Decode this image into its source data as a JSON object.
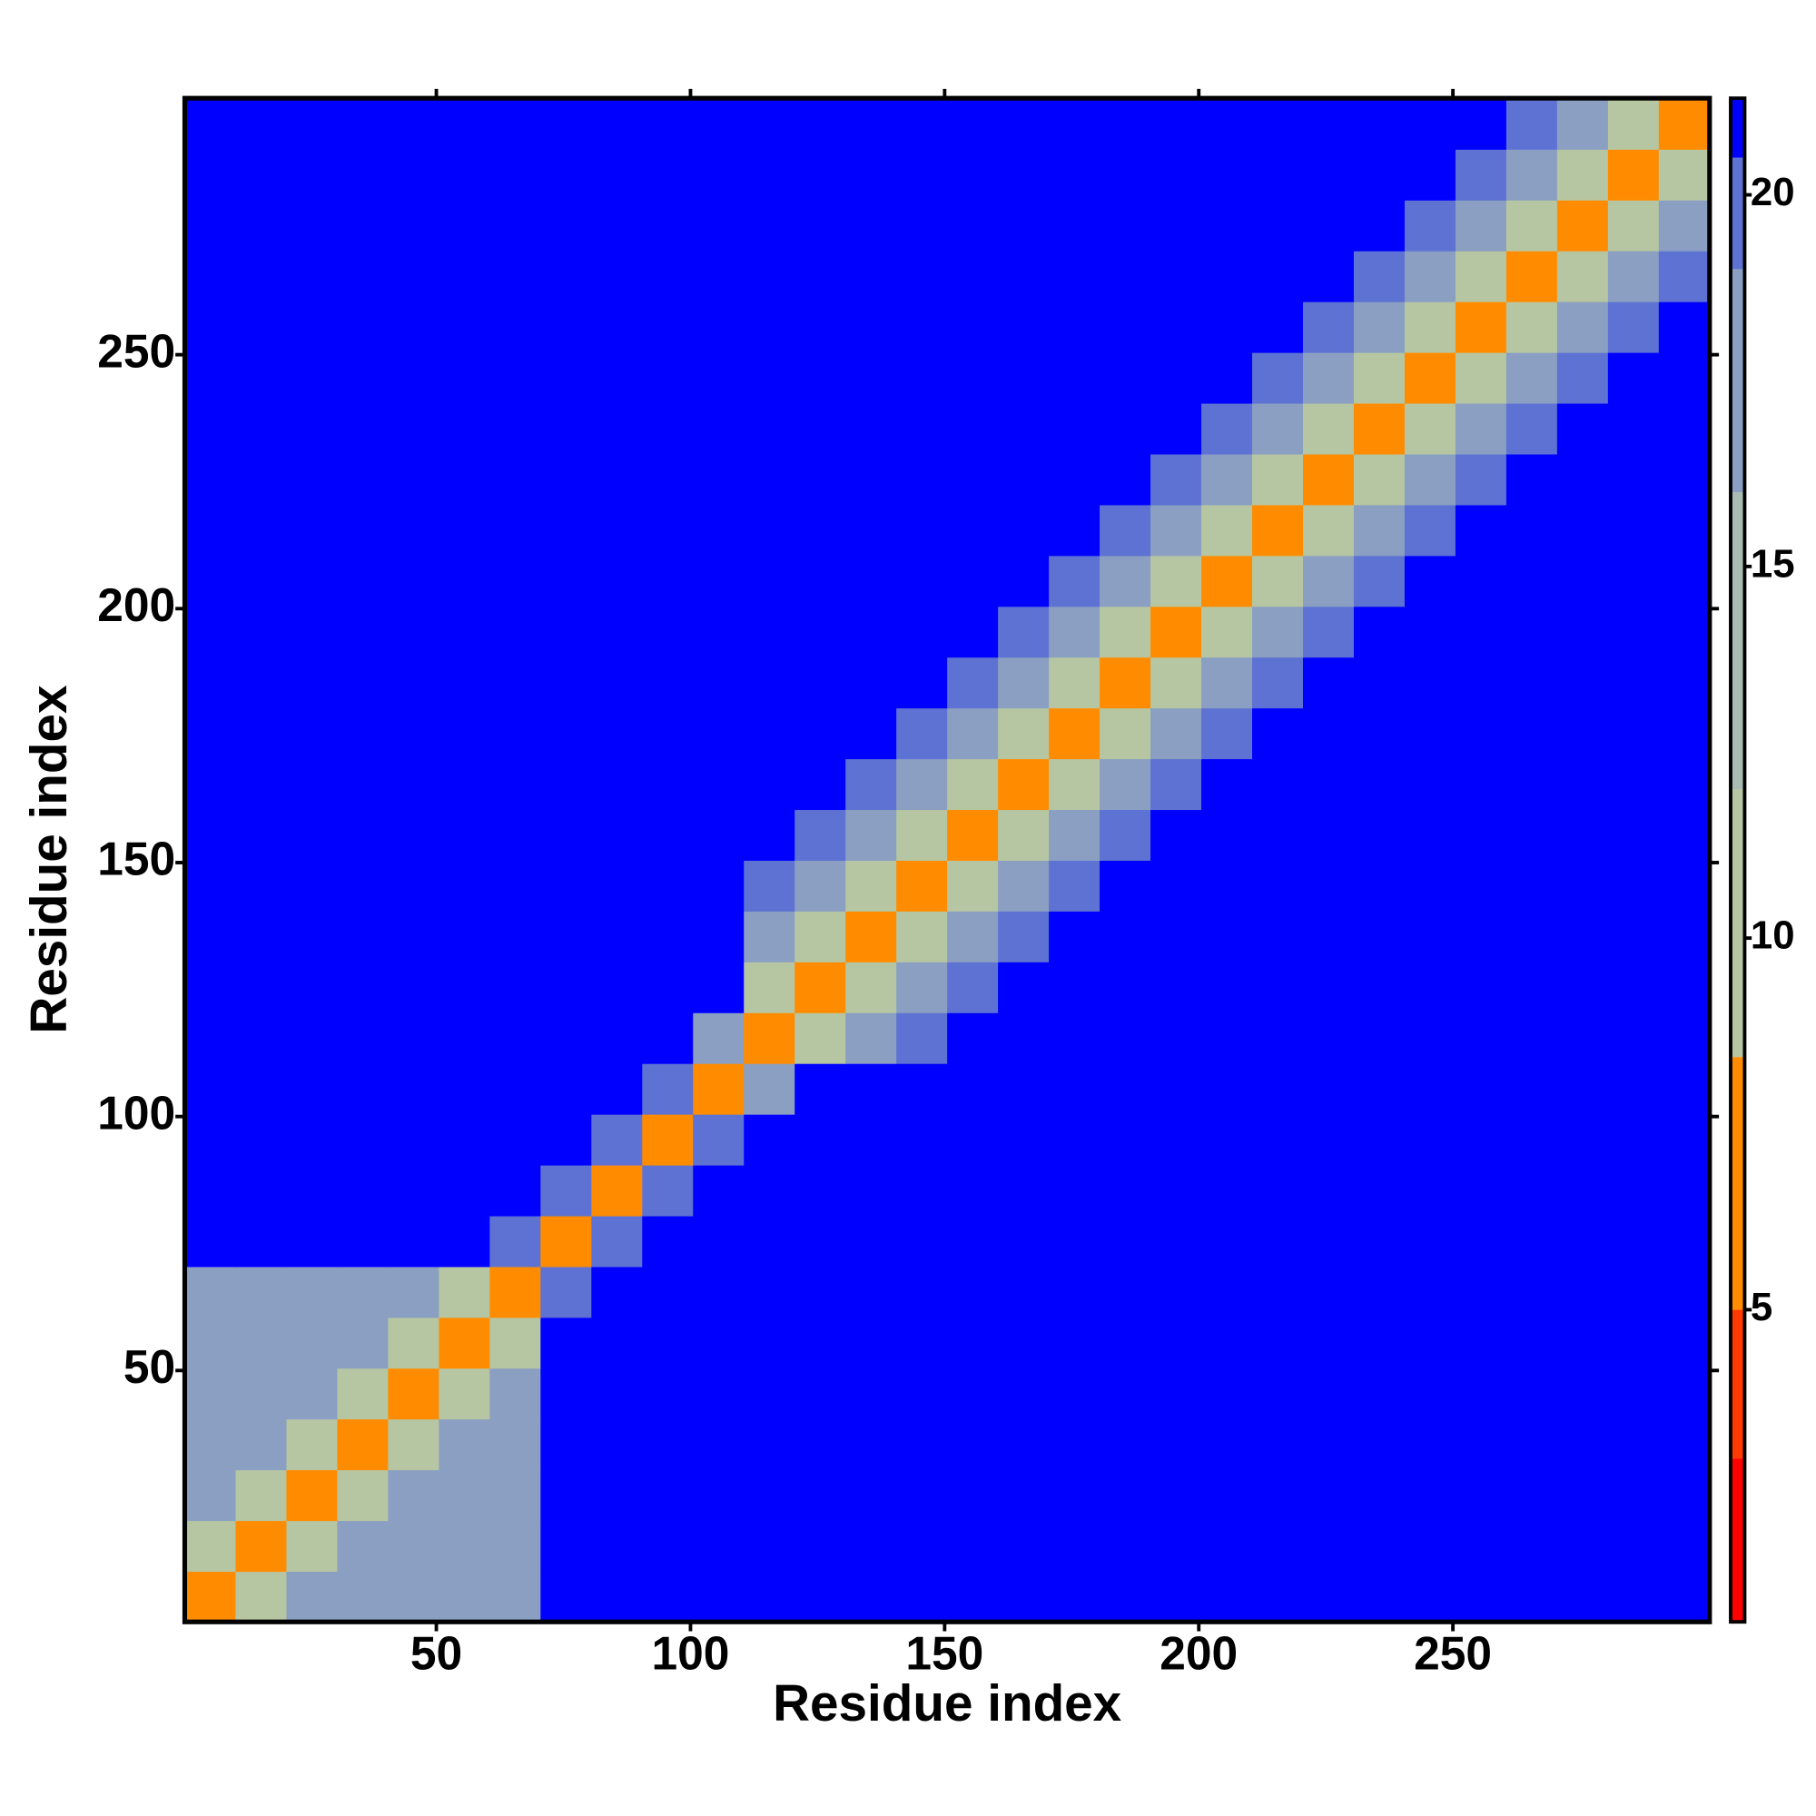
{
  "chart_data": {
    "type": "heatmap",
    "xlabel": "Residue index",
    "ylabel": "Residue index",
    "xlim": [
      0.5,
      300.5
    ],
    "ylim": [
      0.5,
      300.5
    ],
    "xticks": [
      50,
      100,
      150,
      200,
      250
    ],
    "yticks": [
      50,
      100,
      150,
      200,
      250
    ],
    "zlim": [
      0.8,
      21.3
    ],
    "zticks": [
      5,
      10,
      15,
      20
    ],
    "colorscale": [
      [
        0.8,
        "#ff0000"
      ],
      [
        3,
        "#ff3a00"
      ],
      [
        5,
        "#ff8c00"
      ],
      [
        8.4,
        "#b6c6a2"
      ],
      [
        12,
        "#a9bbb3"
      ],
      [
        16,
        "#8a9fc2"
      ],
      [
        19,
        "#5d72d2"
      ],
      [
        20.5,
        "#0000ff"
      ]
    ],
    "x": [
      5.5,
      15.5,
      25.5,
      35.5,
      45.5,
      55.5,
      65.5,
      75.5,
      85.5,
      95.5,
      105.5,
      115.5,
      125.5,
      135.5,
      145.5,
      155.5,
      165.5,
      175.5,
      185.5,
      195.5,
      205.5,
      215.5,
      225.5,
      235.5,
      245.5,
      255.5,
      265.5,
      275.5,
      285.5,
      295.5
    ],
    "y": [
      5.5,
      15.5,
      25.5,
      35.5,
      45.5,
      55.5,
      65.5,
      75.5,
      85.5,
      95.5,
      105.5,
      115.5,
      125.5,
      135.5,
      145.5,
      155.5,
      165.5,
      175.5,
      185.5,
      195.5,
      205.5,
      215.5,
      225.5,
      235.5,
      245.5,
      255.5,
      265.5,
      275.5,
      285.5,
      295.5
    ],
    "z": [
      [
        6,
        11,
        17,
        17,
        17,
        17,
        17,
        21,
        21,
        21,
        21,
        21,
        21,
        21,
        21,
        21,
        21,
        21,
        21,
        21,
        21,
        21,
        21,
        21,
        21,
        21,
        21,
        21,
        21,
        21
      ],
      [
        11,
        6,
        11,
        17,
        17,
        17,
        17,
        21,
        21,
        21,
        21,
        21,
        21,
        21,
        21,
        21,
        21,
        21,
        21,
        21,
        21,
        21,
        21,
        21,
        21,
        21,
        21,
        21,
        21,
        21
      ],
      [
        17,
        11,
        6,
        11,
        17,
        17,
        17,
        21,
        21,
        21,
        21,
        21,
        21,
        21,
        21,
        21,
        21,
        21,
        21,
        21,
        21,
        21,
        21,
        21,
        21,
        21,
        21,
        21,
        21,
        21
      ],
      [
        17,
        17,
        11,
        6,
        11,
        17,
        17,
        21,
        21,
        21,
        21,
        21,
        21,
        21,
        21,
        21,
        21,
        21,
        21,
        21,
        21,
        21,
        21,
        21,
        21,
        21,
        21,
        21,
        21,
        21
      ],
      [
        17,
        17,
        17,
        11,
        6,
        11,
        17,
        21,
        21,
        21,
        21,
        21,
        21,
        21,
        21,
        21,
        21,
        21,
        21,
        21,
        21,
        21,
        21,
        21,
        21,
        21,
        21,
        21,
        21,
        21
      ],
      [
        17,
        17,
        17,
        17,
        11,
        6,
        11,
        21,
        21,
        21,
        21,
        21,
        21,
        21,
        21,
        21,
        21,
        21,
        21,
        21,
        21,
        21,
        21,
        21,
        21,
        21,
        21,
        21,
        21,
        21
      ],
      [
        17,
        17,
        17,
        17,
        17,
        11,
        6,
        19,
        21,
        21,
        21,
        21,
        21,
        21,
        21,
        21,
        21,
        21,
        21,
        21,
        21,
        21,
        21,
        21,
        21,
        21,
        21,
        21,
        21,
        21
      ],
      [
        21,
        21,
        21,
        21,
        21,
        21,
        19,
        6,
        19,
        21,
        21,
        21,
        21,
        21,
        21,
        21,
        21,
        21,
        21,
        21,
        21,
        21,
        21,
        21,
        21,
        21,
        21,
        21,
        21,
        21
      ],
      [
        21,
        21,
        21,
        21,
        21,
        21,
        21,
        19,
        6,
        19,
        21,
        21,
        21,
        21,
        21,
        21,
        21,
        21,
        21,
        21,
        21,
        21,
        21,
        21,
        21,
        21,
        21,
        21,
        21,
        21
      ],
      [
        21,
        21,
        21,
        21,
        21,
        21,
        21,
        21,
        19,
        6,
        19,
        21,
        21,
        21,
        21,
        21,
        21,
        21,
        21,
        21,
        21,
        21,
        21,
        21,
        21,
        21,
        21,
        21,
        21,
        21
      ],
      [
        21,
        21,
        21,
        21,
        21,
        21,
        21,
        21,
        21,
        19,
        6,
        16,
        21,
        21,
        21,
        21,
        21,
        21,
        21,
        21,
        21,
        21,
        21,
        21,
        21,
        21,
        21,
        21,
        21,
        21
      ],
      [
        21,
        21,
        21,
        21,
        21,
        21,
        21,
        21,
        21,
        21,
        16,
        6,
        11,
        16,
        19,
        21,
        21,
        21,
        21,
        21,
        21,
        21,
        21,
        21,
        21,
        21,
        21,
        21,
        21,
        21
      ],
      [
        21,
        21,
        21,
        21,
        21,
        21,
        21,
        21,
        21,
        21,
        21,
        11,
        6,
        11,
        16,
        19,
        21,
        21,
        21,
        21,
        21,
        21,
        21,
        21,
        21,
        21,
        21,
        21,
        21,
        21
      ],
      [
        21,
        21,
        21,
        21,
        21,
        21,
        21,
        21,
        21,
        21,
        21,
        16,
        11,
        6,
        11,
        16,
        19,
        21,
        21,
        21,
        21,
        21,
        21,
        21,
        21,
        21,
        21,
        21,
        21,
        21
      ],
      [
        21,
        21,
        21,
        21,
        21,
        21,
        21,
        21,
        21,
        21,
        21,
        19,
        16,
        11,
        6,
        11,
        16,
        19,
        21,
        21,
        21,
        21,
        21,
        21,
        21,
        21,
        21,
        21,
        21,
        21
      ],
      [
        21,
        21,
        21,
        21,
        21,
        21,
        21,
        21,
        21,
        21,
        21,
        21,
        19,
        16,
        11,
        6,
        11,
        16,
        19,
        21,
        21,
        21,
        21,
        21,
        21,
        21,
        21,
        21,
        21,
        21
      ],
      [
        21,
        21,
        21,
        21,
        21,
        21,
        21,
        21,
        21,
        21,
        21,
        21,
        21,
        19,
        16,
        11,
        6,
        11,
        16,
        19,
        21,
        21,
        21,
        21,
        21,
        21,
        21,
        21,
        21,
        21
      ],
      [
        21,
        21,
        21,
        21,
        21,
        21,
        21,
        21,
        21,
        21,
        21,
        21,
        21,
        21,
        19,
        16,
        11,
        6,
        11,
        16,
        19,
        21,
        21,
        21,
        21,
        21,
        21,
        21,
        21,
        21
      ],
      [
        21,
        21,
        21,
        21,
        21,
        21,
        21,
        21,
        21,
        21,
        21,
        21,
        21,
        21,
        21,
        19,
        16,
        11,
        6,
        11,
        16,
        19,
        21,
        21,
        21,
        21,
        21,
        21,
        21,
        21
      ],
      [
        21,
        21,
        21,
        21,
        21,
        21,
        21,
        21,
        21,
        21,
        21,
        21,
        21,
        21,
        21,
        21,
        19,
        16,
        11,
        6,
        11,
        16,
        19,
        21,
        21,
        21,
        21,
        21,
        21,
        21
      ],
      [
        21,
        21,
        21,
        21,
        21,
        21,
        21,
        21,
        21,
        21,
        21,
        21,
        21,
        21,
        21,
        21,
        21,
        19,
        16,
        11,
        6,
        11,
        16,
        19,
        21,
        21,
        21,
        21,
        21,
        21
      ],
      [
        21,
        21,
        21,
        21,
        21,
        21,
        21,
        21,
        21,
        21,
        21,
        21,
        21,
        21,
        21,
        21,
        21,
        21,
        19,
        16,
        11,
        6,
        11,
        16,
        19,
        21,
        21,
        21,
        21,
        21
      ],
      [
        21,
        21,
        21,
        21,
        21,
        21,
        21,
        21,
        21,
        21,
        21,
        21,
        21,
        21,
        21,
        21,
        21,
        21,
        21,
        19,
        16,
        11,
        6,
        11,
        16,
        19,
        21,
        21,
        21,
        21
      ],
      [
        21,
        21,
        21,
        21,
        21,
        21,
        21,
        21,
        21,
        21,
        21,
        21,
        21,
        21,
        21,
        21,
        21,
        21,
        21,
        21,
        19,
        16,
        11,
        6,
        11,
        16,
        19,
        21,
        21,
        21
      ],
      [
        21,
        21,
        21,
        21,
        21,
        21,
        21,
        21,
        21,
        21,
        21,
        21,
        21,
        21,
        21,
        21,
        21,
        21,
        21,
        21,
        21,
        19,
        16,
        11,
        6,
        11,
        16,
        19,
        21,
        21
      ],
      [
        21,
        21,
        21,
        21,
        21,
        21,
        21,
        21,
        21,
        21,
        21,
        21,
        21,
        21,
        21,
        21,
        21,
        21,
        21,
        21,
        21,
        21,
        19,
        16,
        11,
        6,
        11,
        16,
        19,
        21
      ],
      [
        21,
        21,
        21,
        21,
        21,
        21,
        21,
        21,
        21,
        21,
        21,
        21,
        21,
        21,
        21,
        21,
        21,
        21,
        21,
        21,
        21,
        21,
        21,
        19,
        16,
        11,
        6,
        11,
        16,
        19
      ],
      [
        21,
        21,
        21,
        21,
        21,
        21,
        21,
        21,
        21,
        21,
        21,
        21,
        21,
        21,
        21,
        21,
        21,
        21,
        21,
        21,
        21,
        21,
        21,
        21,
        19,
        16,
        11,
        6,
        11,
        16
      ],
      [
        21,
        21,
        21,
        21,
        21,
        21,
        21,
        21,
        21,
        21,
        21,
        21,
        21,
        21,
        21,
        21,
        21,
        21,
        21,
        21,
        21,
        21,
        21,
        21,
        21,
        19,
        16,
        11,
        6,
        11
      ],
      [
        21,
        21,
        21,
        21,
        21,
        21,
        21,
        21,
        21,
        21,
        21,
        21,
        21,
        21,
        21,
        21,
        21,
        21,
        21,
        21,
        21,
        21,
        21,
        21,
        21,
        21,
        19,
        16,
        11,
        6
      ]
    ]
  }
}
